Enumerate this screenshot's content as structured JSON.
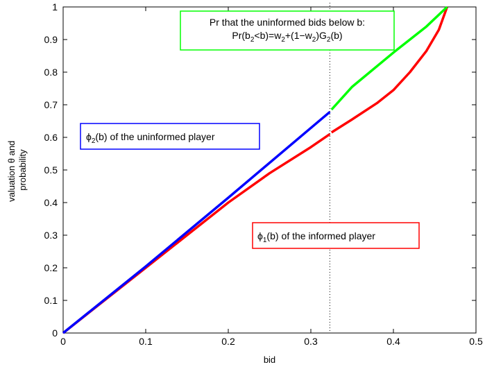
{
  "chart_data": {
    "type": "line",
    "title": "",
    "xlabel": "bid",
    "ylabel_lines": [
      "valuation θ and",
      "probability"
    ],
    "xlim": [
      0,
      0.5
    ],
    "ylim": [
      0,
      1
    ],
    "xticks": [
      "0",
      "0.1",
      "0.2",
      "0.3",
      "0.4",
      "0.5"
    ],
    "yticks": [
      "0",
      "0.1",
      "0.2",
      "0.3",
      "0.4",
      "0.5",
      "0.6",
      "0.7",
      "0.8",
      "0.9",
      "1"
    ],
    "grid": false,
    "series": [
      {
        "color": "#ff0000",
        "x": [
          0,
          0.1,
          0.15,
          0.2,
          0.25,
          0.3,
          0.323
        ],
        "y": [
          0,
          0.2,
          0.3,
          0.4,
          0.49,
          0.57,
          0.61
        ]
      },
      {
        "color": "#ff0000",
        "x": [
          0.325,
          0.35,
          0.38,
          0.4,
          0.42,
          0.44,
          0.455,
          0.465
        ],
        "y": [
          0.615,
          0.655,
          0.705,
          0.745,
          0.8,
          0.865,
          0.93,
          1.0
        ]
      },
      {
        "color": "#0000ff",
        "x": [
          0,
          0.1,
          0.2,
          0.3,
          0.323
        ],
        "y": [
          0,
          0.204,
          0.415,
          0.629,
          0.678
        ]
      },
      {
        "color": "#00ff00",
        "x": [
          0.325,
          0.35,
          0.4,
          0.44,
          0.465
        ],
        "y": [
          0.685,
          0.755,
          0.86,
          0.94,
          1.0
        ]
      }
    ],
    "reference_line": {
      "x": 0.323,
      "style": "dotted"
    },
    "annotations": {
      "informed": {
        "text": "of the informed player",
        "symbol": "ϕ",
        "sub": "1",
        "arg": "(b)",
        "color": "#ff0000"
      },
      "uninformed": {
        "text": "of the uninformed player",
        "symbol": "ϕ",
        "sub": "2",
        "arg": "(b)",
        "color": "#0000ff"
      },
      "prob": {
        "line1": "Pr that the uninformed bids below b:",
        "line2_parts": [
          "Pr(b",
          "2",
          "<b)=w",
          "2",
          "+(1−w",
          "2",
          ")G",
          "2",
          "(b)"
        ],
        "color": "#00ff00"
      }
    }
  }
}
